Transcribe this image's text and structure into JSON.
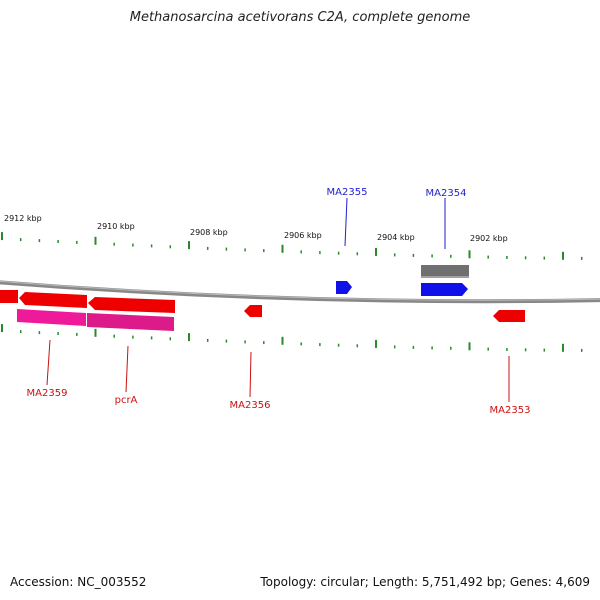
{
  "title": "Methanosarcina acetivorans C2A, complete genome",
  "footer": {
    "accession": "Accession: NC_003552",
    "summary": "Topology: circular; Length: 5,751,492 bp; Genes: 4,609"
  },
  "colors": {
    "forward_label": "#1f1fd0",
    "reverse_label": "#cc1111",
    "tick": "#2a8a2a",
    "backbone": "#888888",
    "forward_gene": "#1010e8",
    "reverse_gene": "#ee0000",
    "reverse_rna": "#ee1a9a",
    "forward_other": "#707070"
  },
  "tick_labels": [
    {
      "text": "2912 kbp"
    },
    {
      "text": "2910 kbp"
    },
    {
      "text": "2908 kbp"
    },
    {
      "text": "2906 kbp"
    },
    {
      "text": "2904 kbp"
    },
    {
      "text": "2902 kbp"
    }
  ],
  "gene_labels": [
    {
      "text": "MA2355",
      "strand": "forward"
    },
    {
      "text": "MA2354",
      "strand": "forward"
    },
    {
      "text": "MA2359",
      "strand": "reverse"
    },
    {
      "text": "pcrA",
      "strand": "reverse"
    },
    {
      "text": "MA2356",
      "strand": "reverse"
    },
    {
      "text": "MA2353",
      "strand": "reverse"
    }
  ]
}
